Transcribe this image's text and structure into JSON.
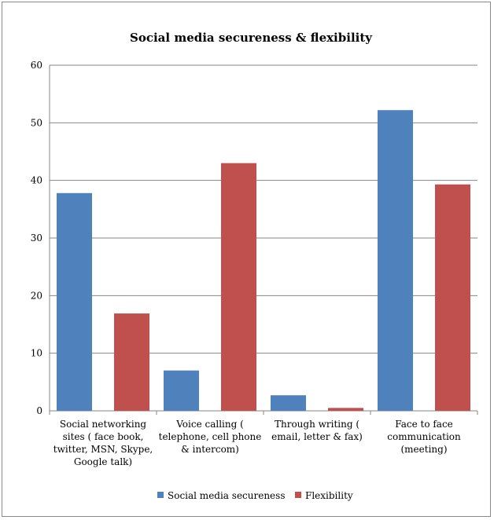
{
  "chart_data": {
    "type": "bar",
    "title": "Social media secureness & flexibility",
    "xlabel": "",
    "ylabel": "",
    "ylim": [
      0,
      60
    ],
    "yticks": [
      0,
      10,
      20,
      30,
      40,
      50,
      60
    ],
    "grid": true,
    "legend_position": "bottom",
    "categories": [
      [
        "Social networking",
        "sites ( face book,",
        "twitter, MSN, Skype,",
        "Google talk)"
      ],
      [
        "Voice calling (",
        "telephone, cell phone",
        "& intercom)"
      ],
      [
        "Through writing (",
        "email, letter & fax)"
      ],
      [
        "Face to face",
        "communication",
        "(meeting)"
      ]
    ],
    "series": [
      {
        "name": "Social media secureness",
        "color": "#4f81bd",
        "values": [
          37.8,
          7,
          2.7,
          52.2
        ]
      },
      {
        "name": "Flexibility",
        "color": "#c0504d",
        "values": [
          16.9,
          43,
          0.5,
          39.3
        ]
      }
    ]
  }
}
